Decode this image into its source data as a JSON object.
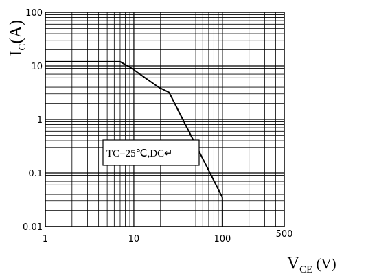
{
  "chart_data": {
    "type": "line",
    "x_scale": "log",
    "y_scale": "log",
    "xlim": [
      1,
      500
    ],
    "ylim": [
      0.01,
      100
    ],
    "grid": true,
    "x_ticks": [
      "1",
      "10",
      "100",
      "500"
    ],
    "y_ticks": [
      "0.01",
      "0.1",
      "1",
      "10",
      "100"
    ],
    "ylabel": {
      "main": "I",
      "sub": "C",
      "rest": "(A)"
    },
    "xlabel": {
      "main": "V",
      "sub": "CE",
      "rest": " (V)"
    },
    "annotation": "TC=25℃,DC↵",
    "series": [
      {
        "x": [
          1,
          7,
          9,
          19,
          25,
          100,
          100
        ],
        "y": [
          12,
          12,
          9.5,
          4.0,
          3.2,
          0.035,
          0.01
        ]
      }
    ],
    "colors": {
      "line": "#000000",
      "grid": "#000000",
      "background": "#ffffff"
    }
  }
}
